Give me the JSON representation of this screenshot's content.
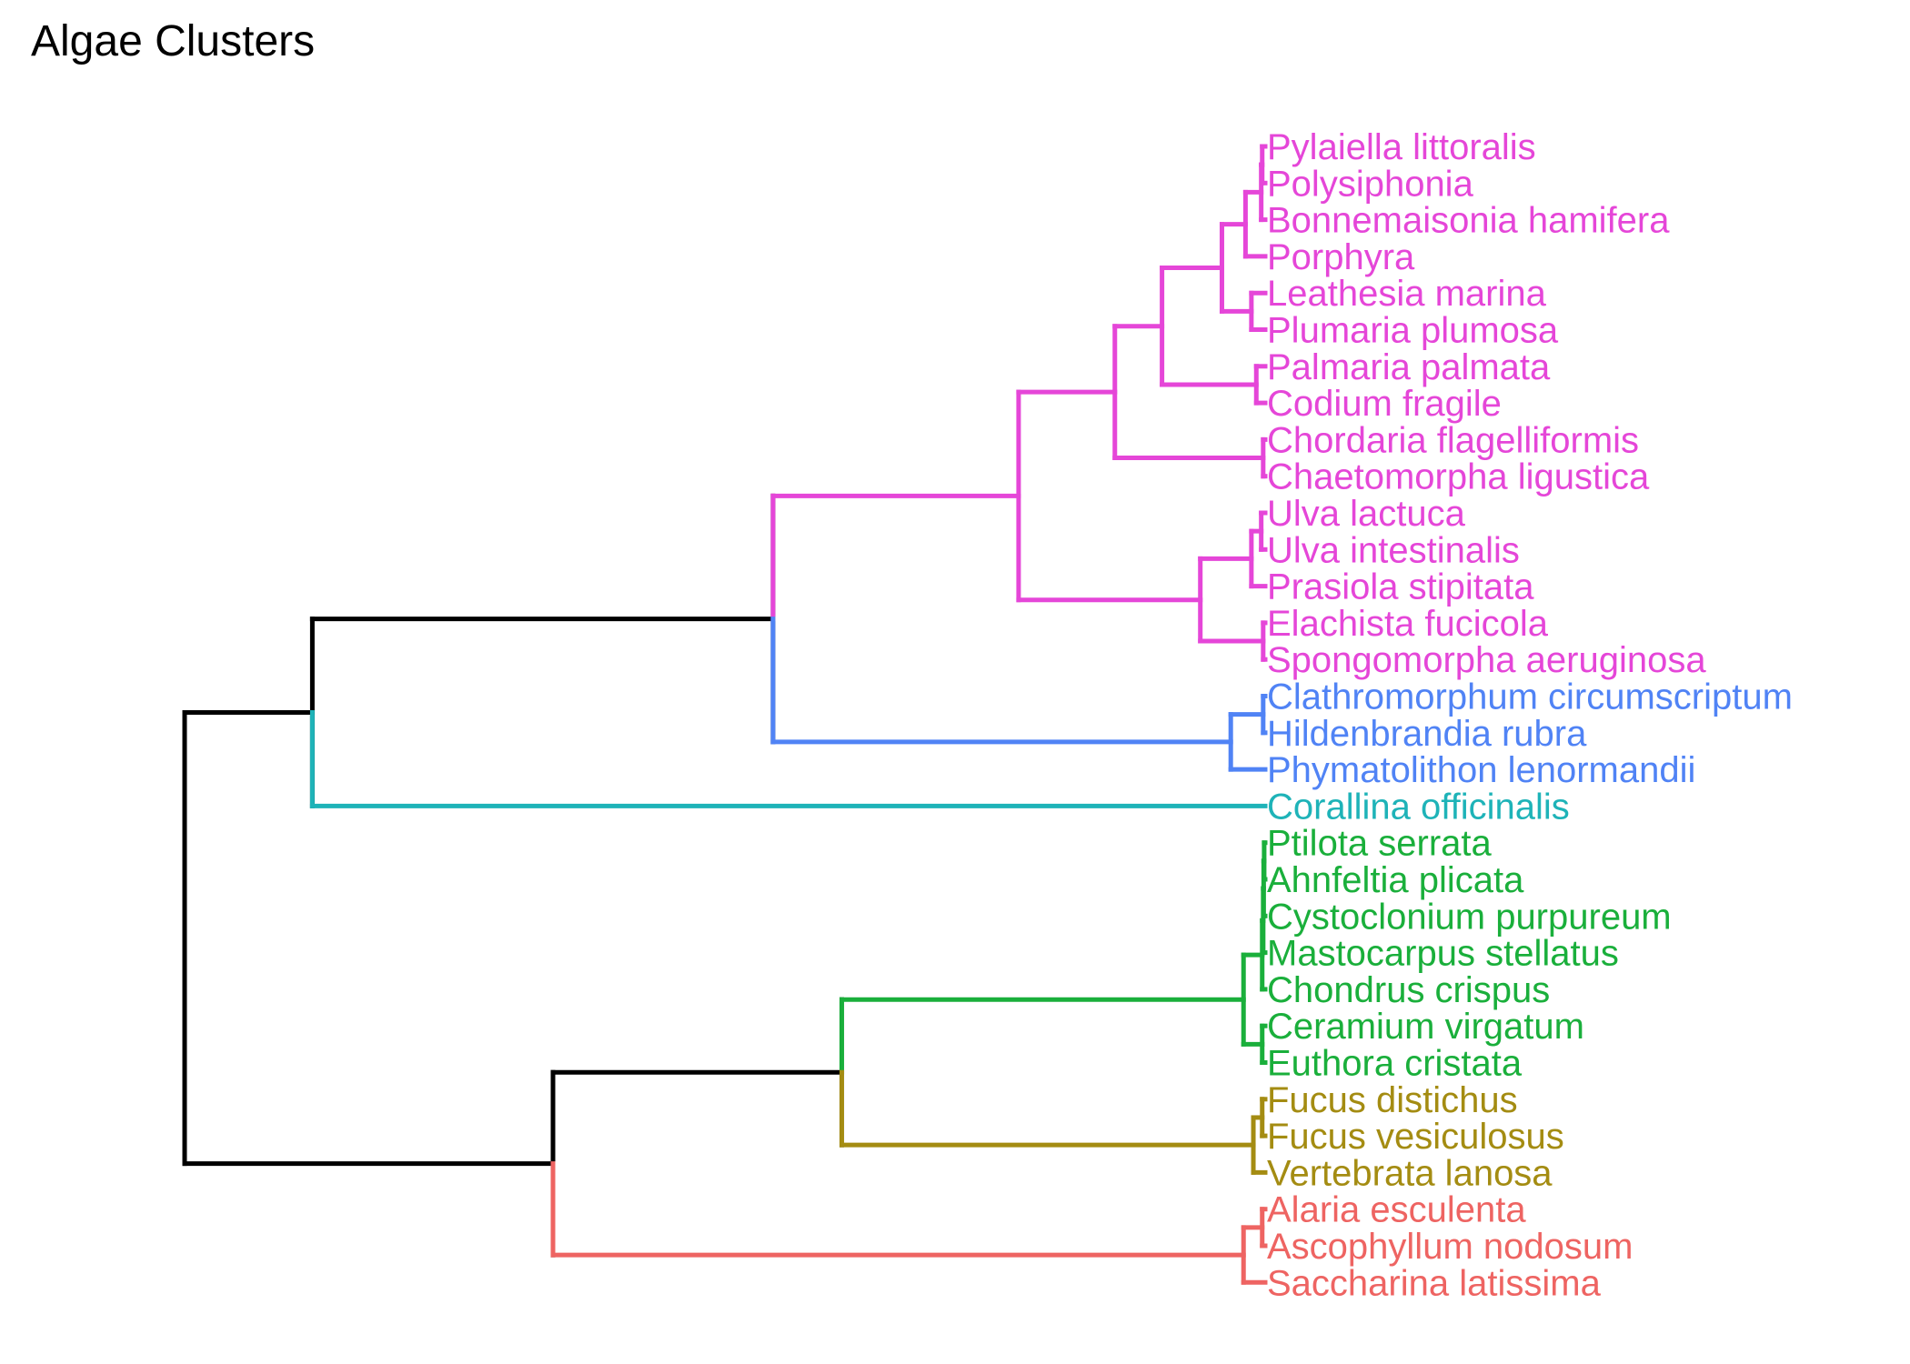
{
  "title": "Algae Clusters",
  "colors": {
    "magenta": "#E546D8",
    "blue": "#5083F5",
    "teal": "#1EB3B8",
    "green": "#1AAF3B",
    "olive": "#A48C12",
    "red": "#EE6462",
    "black": "#000000"
  },
  "leaves": [
    {
      "label": "Pylaiella littoralis",
      "color": "magenta"
    },
    {
      "label": "Polysiphonia",
      "color": "magenta"
    },
    {
      "label": "Bonnemaisonia hamifera",
      "color": "magenta"
    },
    {
      "label": "Porphyra",
      "color": "magenta"
    },
    {
      "label": "Leathesia marina",
      "color": "magenta"
    },
    {
      "label": "Plumaria plumosa",
      "color": "magenta"
    },
    {
      "label": "Palmaria palmata",
      "color": "magenta"
    },
    {
      "label": "Codium fragile",
      "color": "magenta"
    },
    {
      "label": "Chordaria flagelliformis",
      "color": "magenta"
    },
    {
      "label": "Chaetomorpha ligustica",
      "color": "magenta"
    },
    {
      "label": "Ulva lactuca",
      "color": "magenta"
    },
    {
      "label": "Ulva intestinalis",
      "color": "magenta"
    },
    {
      "label": "Prasiola stipitata",
      "color": "magenta"
    },
    {
      "label": "Elachista fucicola",
      "color": "magenta"
    },
    {
      "label": "Spongomorpha aeruginosa",
      "color": "magenta"
    },
    {
      "label": "Clathromorphum circumscriptum",
      "color": "blue"
    },
    {
      "label": "Hildenbrandia rubra",
      "color": "blue"
    },
    {
      "label": "Phymatolithon lenormandii",
      "color": "blue"
    },
    {
      "label": "Corallina officinalis",
      "color": "teal"
    },
    {
      "label": "Ptilota serrata",
      "color": "green"
    },
    {
      "label": "Ahnfeltia plicata",
      "color": "green"
    },
    {
      "label": "Cystoclonium purpureum",
      "color": "green"
    },
    {
      "label": "Mastocarpus stellatus",
      "color": "green"
    },
    {
      "label": "Chondrus crispus",
      "color": "green"
    },
    {
      "label": "Ceramium virgatum",
      "color": "green"
    },
    {
      "label": "Euthora cristata",
      "color": "green"
    },
    {
      "label": "Fucus distichus",
      "color": "olive"
    },
    {
      "label": "Fucus vesiculosus",
      "color": "olive"
    },
    {
      "label": "Vertebrata lanosa",
      "color": "olive"
    },
    {
      "label": "Alaria esculenta",
      "color": "red"
    },
    {
      "label": "Ascophyllum nodosum",
      "color": "red"
    },
    {
      "label": "Saccharina latissima",
      "color": "red"
    }
  ],
  "merges": [
    {
      "left": 0,
      "right": 1,
      "height": 0.3,
      "color": "magenta"
    },
    {
      "left": "m0",
      "right": 2,
      "height": 0.4,
      "color": "magenta"
    },
    {
      "left": "m1",
      "right": 3,
      "height": 2.0,
      "color": "magenta"
    },
    {
      "left": 4,
      "right": 5,
      "height": 1.4,
      "color": "magenta"
    },
    {
      "left": "m2",
      "right": "m3",
      "height": 4.4,
      "color": "magenta"
    },
    {
      "left": 6,
      "right": 7,
      "height": 0.9,
      "color": "magenta"
    },
    {
      "left": "m4",
      "right": "m5",
      "height": 10.5,
      "color": "magenta"
    },
    {
      "left": 8,
      "right": 9,
      "height": 0.2,
      "color": "magenta"
    },
    {
      "left": "m6",
      "right": "m7",
      "height": 15.3,
      "color": "magenta"
    },
    {
      "left": 10,
      "right": 11,
      "height": 0.4,
      "color": "magenta"
    },
    {
      "left": "m9",
      "right": 12,
      "height": 1.4,
      "color": "magenta"
    },
    {
      "left": 13,
      "right": 14,
      "height": 0.2,
      "color": "magenta"
    },
    {
      "left": "m10",
      "right": "m11",
      "height": 6.6,
      "color": "magenta"
    },
    {
      "left": "m8",
      "right": "m12",
      "height": 25.1,
      "color": "magenta"
    },
    {
      "left": 15,
      "right": 16,
      "height": 0.2,
      "color": "blue"
    },
    {
      "left": "m14",
      "right": 17,
      "height": 3.5,
      "color": "blue"
    },
    {
      "left": "m13",
      "right": "m15",
      "height": 50.1,
      "color": "black"
    },
    {
      "left": "m16",
      "right": 18,
      "height": 97.0,
      "color": "black"
    },
    {
      "left": 19,
      "right": 20,
      "height": 0.1,
      "color": "green"
    },
    {
      "left": "m18",
      "right": 21,
      "height": 0.15,
      "color": "green"
    },
    {
      "left": "m19",
      "right": 22,
      "height": 0.2,
      "color": "green"
    },
    {
      "left": "m20",
      "right": 23,
      "height": 0.3,
      "color": "green"
    },
    {
      "left": 24,
      "right": 25,
      "height": 0.3,
      "color": "green"
    },
    {
      "left": "m21",
      "right": "m22",
      "height": 2.2,
      "color": "green"
    },
    {
      "left": 26,
      "right": 27,
      "height": 0.3,
      "color": "olive"
    },
    {
      "left": "m24",
      "right": 28,
      "height": 1.2,
      "color": "olive"
    },
    {
      "left": "m23",
      "right": "m25",
      "height": 43.1,
      "color": "black"
    },
    {
      "left": 29,
      "right": 30,
      "height": 0.3,
      "color": "red"
    },
    {
      "left": "m27",
      "right": 31,
      "height": 2.2,
      "color": "red"
    },
    {
      "left": "m26",
      "right": "m28",
      "height": 72.5,
      "color": "black"
    },
    {
      "left": "m17",
      "right": "m29",
      "height": 110.0,
      "color": "black"
    }
  ]
}
